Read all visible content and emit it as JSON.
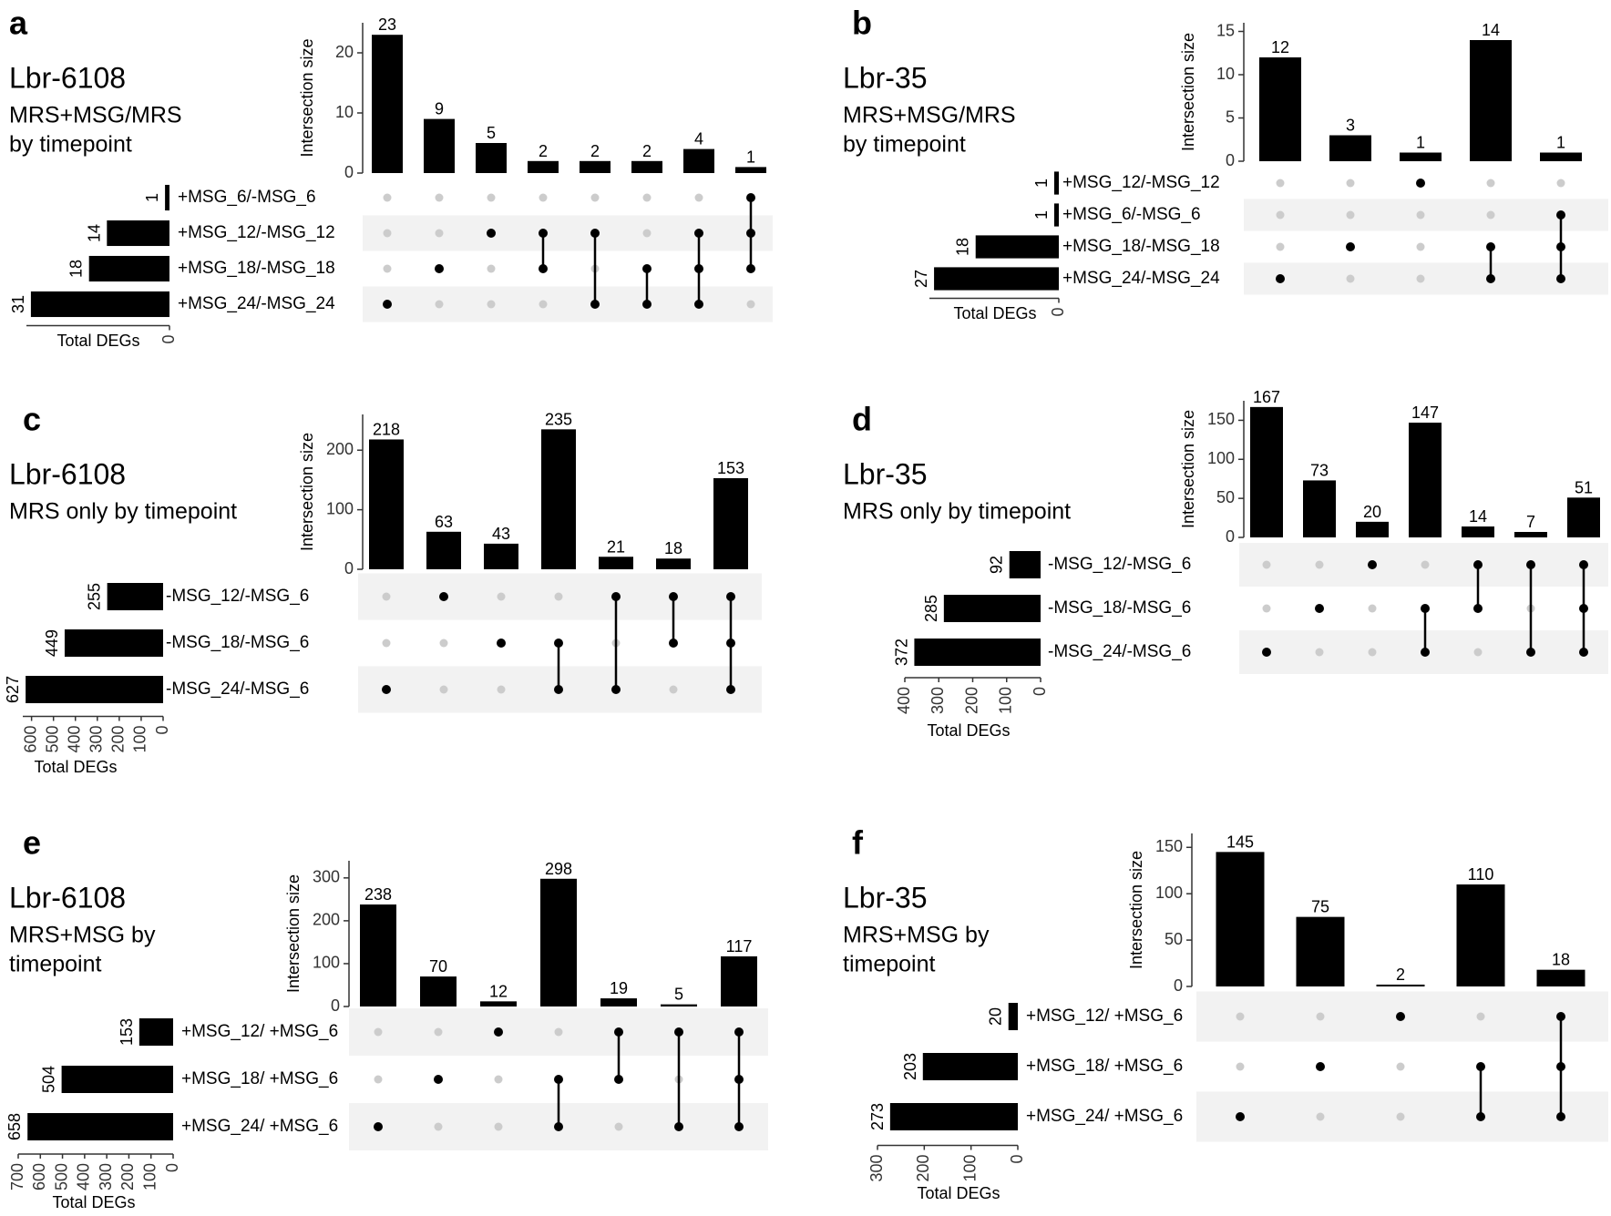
{
  "chart_data": [
    {
      "type": "bar",
      "panel": "a",
      "title": "Lbr-6108",
      "subtitle_lines": [
        "MRS+MSG/MRS",
        "by timepoint"
      ],
      "ylabel": "Intersection size",
      "xlabel": "Total DEGs",
      "ylim": [
        0,
        25
      ],
      "yticks": [
        0,
        10,
        20
      ],
      "sets": [
        {
          "name": "+MSG_6/-MSG_6",
          "total": 1
        },
        {
          "name": "+MSG_12/-MSG_12",
          "total": 14
        },
        {
          "name": "+MSG_18/-MSG_18",
          "total": 18
        },
        {
          "name": "+MSG_24/-MSG_24",
          "total": 31
        }
      ],
      "set_axis_max": 32,
      "set_ticks": [
        0
      ],
      "intersections": [
        {
          "sets": [
            3
          ],
          "value": 23
        },
        {
          "sets": [
            2
          ],
          "value": 9
        },
        {
          "sets": [
            1
          ],
          "value": 5
        },
        {
          "sets": [
            1,
            2
          ],
          "value": 2
        },
        {
          "sets": [
            1,
            3
          ],
          "value": 2
        },
        {
          "sets": [
            2,
            3
          ],
          "value": 2
        },
        {
          "sets": [
            1,
            2,
            3
          ],
          "value": 4
        },
        {
          "sets": [
            0,
            1,
            2
          ],
          "value": 1
        }
      ]
    },
    {
      "type": "bar",
      "panel": "b",
      "title": "Lbr-35",
      "subtitle_lines": [
        "MRS+MSG/MRS",
        "by timepoint"
      ],
      "ylabel": "Intersection size",
      "xlabel": "Total DEGs",
      "ylim": [
        0,
        16
      ],
      "yticks": [
        0,
        5,
        10,
        15
      ],
      "sets": [
        {
          "name": "+MSG_12/-MSG_12",
          "total": 1
        },
        {
          "name": "+MSG_6/-MSG_6",
          "total": 1
        },
        {
          "name": "+MSG_18/-MSG_18",
          "total": 18
        },
        {
          "name": "+MSG_24/-MSG_24",
          "total": 27
        }
      ],
      "set_axis_max": 28,
      "set_ticks": [
        0
      ],
      "intersections": [
        {
          "sets": [
            3
          ],
          "value": 12
        },
        {
          "sets": [
            2
          ],
          "value": 3
        },
        {
          "sets": [
            0
          ],
          "value": 1
        },
        {
          "sets": [
            2,
            3
          ],
          "value": 14
        },
        {
          "sets": [
            1,
            2,
            3
          ],
          "value": 1
        }
      ]
    },
    {
      "type": "bar",
      "panel": "c",
      "title": "Lbr-6108",
      "subtitle_lines": [
        "MRS only by timepoint"
      ],
      "ylabel": "Intersection size",
      "xlabel": "Total DEGs",
      "ylim": [
        0,
        260
      ],
      "yticks": [
        0,
        100,
        200
      ],
      "sets": [
        {
          "name": "-MSG_12/-MSG_6",
          "total": 255
        },
        {
          "name": "-MSG_18/-MSG_6",
          "total": 449
        },
        {
          "name": "-MSG_24/-MSG_6",
          "total": 627
        }
      ],
      "set_axis_max": 640,
      "set_ticks": [
        0,
        100,
        200,
        300,
        400,
        500,
        600
      ],
      "intersections": [
        {
          "sets": [
            2
          ],
          "value": 218
        },
        {
          "sets": [
            0
          ],
          "value": 63
        },
        {
          "sets": [
            1
          ],
          "value": 43
        },
        {
          "sets": [
            1,
            2
          ],
          "value": 235
        },
        {
          "sets": [
            0,
            2
          ],
          "value": 21
        },
        {
          "sets": [
            0,
            1
          ],
          "value": 18
        },
        {
          "sets": [
            0,
            1,
            2
          ],
          "value": 153
        }
      ]
    },
    {
      "type": "bar",
      "panel": "d",
      "title": "Lbr-35",
      "subtitle_lines": [
        "MRS only by timepoint"
      ],
      "ylabel": "Intersection size",
      "xlabel": "Total DEGs",
      "ylim": [
        0,
        175
      ],
      "yticks": [
        0,
        50,
        100,
        150
      ],
      "sets": [
        {
          "name": "-MSG_12/-MSG_6",
          "total": 92
        },
        {
          "name": "-MSG_18/-MSG_6",
          "total": 285
        },
        {
          "name": "-MSG_24/-MSG_6",
          "total": 372
        }
      ],
      "set_axis_max": 400,
      "set_ticks": [
        0,
        100,
        200,
        300,
        400
      ],
      "intersections": [
        {
          "sets": [
            2
          ],
          "value": 167
        },
        {
          "sets": [
            1
          ],
          "value": 73
        },
        {
          "sets": [
            0
          ],
          "value": 20
        },
        {
          "sets": [
            1,
            2
          ],
          "value": 147
        },
        {
          "sets": [
            0,
            1
          ],
          "value": 14
        },
        {
          "sets": [
            0,
            2
          ],
          "value": 7
        },
        {
          "sets": [
            0,
            1,
            2
          ],
          "value": 51
        }
      ]
    },
    {
      "type": "bar",
      "panel": "e",
      "title": "Lbr-6108",
      "subtitle_lines": [
        "MRS+MSG by",
        "timepoint"
      ],
      "ylabel": "Intersection size",
      "xlabel": "Total DEGs",
      "ylim": [
        0,
        340
      ],
      "yticks": [
        0,
        100,
        200,
        300
      ],
      "sets": [
        {
          "name": "+MSG_12/ +MSG_6",
          "total": 153
        },
        {
          "name": "+MSG_18/ +MSG_6",
          "total": 504
        },
        {
          "name": "+MSG_24/ +MSG_6",
          "total": 658
        }
      ],
      "set_axis_max": 700,
      "set_ticks": [
        0,
        100,
        200,
        300,
        400,
        500,
        600,
        700
      ],
      "intersections": [
        {
          "sets": [
            2
          ],
          "value": 238
        },
        {
          "sets": [
            1
          ],
          "value": 70
        },
        {
          "sets": [
            0
          ],
          "value": 12
        },
        {
          "sets": [
            1,
            2
          ],
          "value": 298
        },
        {
          "sets": [
            0,
            1
          ],
          "value": 19
        },
        {
          "sets": [
            0,
            2
          ],
          "value": 5
        },
        {
          "sets": [
            0,
            1,
            2
          ],
          "value": 117
        }
      ]
    },
    {
      "type": "bar",
      "panel": "f",
      "title": "Lbr-35",
      "subtitle_lines": [
        "MRS+MSG by",
        "timepoint"
      ],
      "ylabel": "Intersection size",
      "xlabel": "Total DEGs",
      "ylim": [
        0,
        165
      ],
      "yticks": [
        0,
        50,
        100,
        150
      ],
      "sets": [
        {
          "name": "+MSG_12/ +MSG_6",
          "total": 20
        },
        {
          "name": "+MSG_18/ +MSG_6",
          "total": 203
        },
        {
          "name": "+MSG_24/ +MSG_6",
          "total": 273
        }
      ],
      "set_axis_max": 300,
      "set_ticks": [
        0,
        100,
        200,
        300
      ],
      "intersections": [
        {
          "sets": [
            2
          ],
          "value": 145
        },
        {
          "sets": [
            1
          ],
          "value": 75
        },
        {
          "sets": [
            0
          ],
          "value": 2
        },
        {
          "sets": [
            1,
            2
          ],
          "value": 110
        },
        {
          "sets": [
            0,
            1,
            2
          ],
          "value": 18
        }
      ]
    }
  ]
}
